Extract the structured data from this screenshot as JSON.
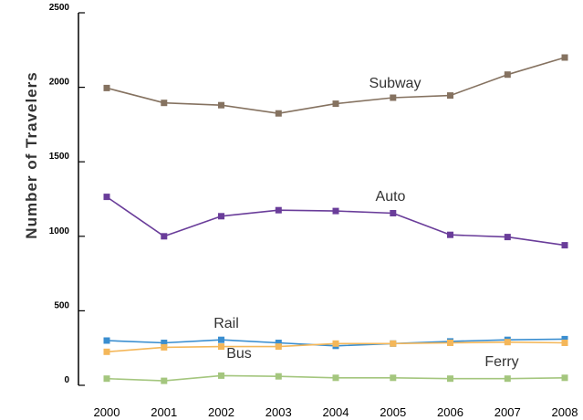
{
  "chart_data": {
    "type": "line",
    "title": "",
    "xlabel": "",
    "ylabel": "Number of Travelers",
    "x": [
      "2000",
      "2001",
      "2002",
      "2003",
      "2004",
      "2005",
      "2006",
      "2007",
      "2008"
    ],
    "ylim": [
      0,
      2500
    ],
    "yticks": [
      "0",
      "500",
      "1000",
      "1500",
      "2000",
      "2500"
    ],
    "grid": false,
    "legend": "inline labels near series",
    "series": [
      {
        "name": "Subway",
        "color": "#857260",
        "values": [
          1995,
          1895,
          1880,
          1825,
          1890,
          1930,
          1945,
          2085,
          2200
        ]
      },
      {
        "name": "Auto",
        "color": "#6a3d9a",
        "values": [
          1265,
          1000,
          1135,
          1175,
          1170,
          1155,
          1010,
          995,
          940
        ]
      },
      {
        "name": "Rail",
        "color": "#3a8ed0",
        "values": [
          300,
          285,
          305,
          285,
          265,
          280,
          295,
          305,
          310
        ]
      },
      {
        "name": "Bus",
        "color": "#f4b75a",
        "values": [
          225,
          255,
          260,
          260,
          280,
          280,
          285,
          290,
          285
        ]
      },
      {
        "name": "Ferry",
        "color": "#a4c67e",
        "values": [
          45,
          30,
          65,
          60,
          50,
          50,
          45,
          45,
          50
        ]
      }
    ]
  }
}
